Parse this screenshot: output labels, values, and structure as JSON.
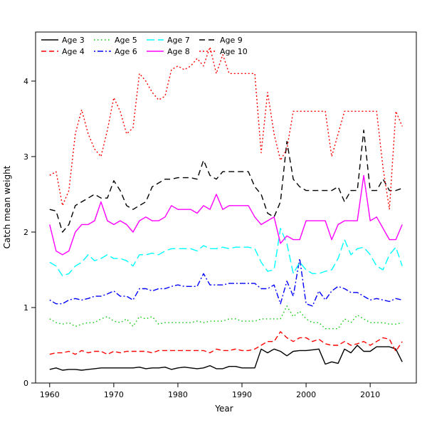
{
  "chart_data": {
    "type": "line",
    "title": "",
    "xlabel": "Year",
    "ylabel": "Catch mean weight",
    "xlim": [
      1957.8,
      2017.2
    ],
    "ylim": [
      0,
      4.65
    ],
    "xticks": [
      1960,
      1970,
      1980,
      1990,
      2000,
      2010
    ],
    "yticks": [
      0,
      1,
      2,
      3,
      4
    ],
    "grid": false,
    "legend_position": "top-left",
    "legend_ncol": 4,
    "x": [
      1960,
      1961,
      1962,
      1963,
      1964,
      1965,
      1966,
      1967,
      1968,
      1969,
      1970,
      1971,
      1972,
      1973,
      1974,
      1975,
      1976,
      1977,
      1978,
      1979,
      1980,
      1981,
      1982,
      1983,
      1984,
      1985,
      1986,
      1987,
      1988,
      1989,
      1990,
      1991,
      1992,
      1993,
      1994,
      1995,
      1996,
      1997,
      1998,
      1999,
      2000,
      2001,
      2002,
      2003,
      2004,
      2005,
      2006,
      2007,
      2008,
      2009,
      2010,
      2011,
      2012,
      2013,
      2014,
      2015
    ],
    "series": [
      {
        "name": "Age 3",
        "color": "#000000",
        "dash": "",
        "values": [
          0.18,
          0.2,
          0.17,
          0.18,
          0.18,
          0.17,
          0.18,
          0.19,
          0.2,
          0.2,
          0.2,
          0.2,
          0.2,
          0.2,
          0.21,
          0.19,
          0.2,
          0.2,
          0.21,
          0.18,
          0.2,
          0.21,
          0.2,
          0.19,
          0.2,
          0.23,
          0.19,
          0.19,
          0.22,
          0.22,
          0.2,
          0.2,
          0.2,
          0.45,
          0.4,
          0.45,
          0.42,
          0.36,
          0.42,
          0.43,
          0.43,
          0.44,
          0.45,
          0.25,
          0.28,
          0.26,
          0.45,
          0.4,
          0.5,
          0.42,
          0.42,
          0.48,
          0.48,
          0.48,
          0.45,
          0.28
        ]
      },
      {
        "name": "Age 4",
        "color": "#FF0000",
        "dash": "7,4",
        "values": [
          0.38,
          0.4,
          0.4,
          0.42,
          0.38,
          0.43,
          0.4,
          0.42,
          0.42,
          0.38,
          0.42,
          0.4,
          0.42,
          0.42,
          0.42,
          0.42,
          0.4,
          0.43,
          0.43,
          0.43,
          0.43,
          0.43,
          0.43,
          0.43,
          0.43,
          0.4,
          0.45,
          0.43,
          0.43,
          0.45,
          0.43,
          0.43,
          0.45,
          0.5,
          0.55,
          0.55,
          0.68,
          0.6,
          0.55,
          0.6,
          0.6,
          0.55,
          0.58,
          0.52,
          0.5,
          0.5,
          0.55,
          0.5,
          0.52,
          0.55,
          0.5,
          0.55,
          0.6,
          0.58,
          0.42,
          0.55
        ]
      },
      {
        "name": "Age 5",
        "color": "#00CC00",
        "dash": "1.5,3.5",
        "values": [
          0.85,
          0.8,
          0.78,
          0.8,
          0.75,
          0.78,
          0.8,
          0.8,
          0.85,
          0.88,
          0.82,
          0.8,
          0.85,
          0.75,
          0.88,
          0.85,
          0.88,
          0.78,
          0.8,
          0.8,
          0.8,
          0.8,
          0.8,
          0.82,
          0.8,
          0.82,
          0.82,
          0.82,
          0.85,
          0.85,
          0.82,
          0.82,
          0.82,
          0.85,
          0.85,
          0.85,
          0.85,
          1.02,
          0.88,
          0.95,
          0.85,
          0.8,
          0.8,
          0.72,
          0.72,
          0.72,
          0.85,
          0.8,
          0.9,
          0.85,
          0.8,
          0.8,
          0.8,
          0.78,
          0.78,
          0.8
        ]
      },
      {
        "name": "Age 6",
        "color": "#0000FF",
        "dash": "2,3,8,3",
        "values": [
          1.1,
          1.05,
          1.05,
          1.1,
          1.12,
          1.1,
          1.12,
          1.15,
          1.15,
          1.18,
          1.22,
          1.15,
          1.15,
          1.1,
          1.25,
          1.25,
          1.22,
          1.25,
          1.25,
          1.28,
          1.3,
          1.28,
          1.28,
          1.28,
          1.45,
          1.3,
          1.3,
          1.3,
          1.32,
          1.32,
          1.32,
          1.32,
          1.32,
          1.25,
          1.25,
          1.3,
          1.05,
          1.35,
          1.15,
          1.65,
          1.05,
          1.02,
          1.22,
          1.1,
          1.22,
          1.28,
          1.25,
          1.2,
          1.2,
          1.15,
          1.1,
          1.12,
          1.1,
          1.08,
          1.12,
          1.1
        ]
      },
      {
        "name": "Age 7",
        "color": "#00FFFF",
        "dash": "11,5",
        "values": [
          1.6,
          1.55,
          1.42,
          1.45,
          1.55,
          1.6,
          1.7,
          1.62,
          1.65,
          1.7,
          1.65,
          1.65,
          1.62,
          1.55,
          1.7,
          1.7,
          1.72,
          1.7,
          1.75,
          1.78,
          1.78,
          1.78,
          1.78,
          1.75,
          1.82,
          1.78,
          1.78,
          1.8,
          1.78,
          1.8,
          1.8,
          1.8,
          1.78,
          1.6,
          1.48,
          1.5,
          2.05,
          1.85,
          1.45,
          1.6,
          1.5,
          1.45,
          1.45,
          1.48,
          1.5,
          1.65,
          1.9,
          1.7,
          1.78,
          1.8,
          1.7,
          1.55,
          1.5,
          1.7,
          1.8,
          1.55
        ]
      },
      {
        "name": "Age 8",
        "color": "#FF00FF",
        "dash": "",
        "values": [
          2.1,
          1.75,
          1.7,
          1.75,
          2.0,
          2.1,
          2.1,
          2.15,
          2.4,
          2.15,
          2.1,
          2.15,
          2.1,
          2.0,
          2.15,
          2.2,
          2.15,
          2.15,
          2.2,
          2.35,
          2.3,
          2.3,
          2.3,
          2.25,
          2.35,
          2.3,
          2.5,
          2.3,
          2.35,
          2.35,
          2.35,
          2.35,
          2.2,
          2.1,
          2.15,
          2.2,
          1.85,
          1.95,
          1.9,
          1.9,
          2.15,
          2.15,
          2.15,
          2.15,
          1.9,
          2.1,
          2.15,
          2.15,
          2.15,
          2.75,
          2.15,
          2.2,
          2.05,
          1.9,
          1.9,
          2.1
        ]
      },
      {
        "name": "Age 9",
        "color": "#000000",
        "dash": "8,5",
        "values": [
          2.3,
          2.28,
          2.0,
          2.1,
          2.35,
          2.4,
          2.45,
          2.5,
          2.45,
          2.45,
          2.68,
          2.55,
          2.35,
          2.3,
          2.35,
          2.4,
          2.6,
          2.65,
          2.7,
          2.7,
          2.72,
          2.72,
          2.72,
          2.7,
          2.95,
          2.75,
          2.7,
          2.8,
          2.8,
          2.8,
          2.8,
          2.8,
          2.6,
          2.5,
          2.25,
          2.2,
          2.4,
          3.2,
          2.7,
          2.6,
          2.55,
          2.55,
          2.55,
          2.55,
          2.55,
          2.6,
          2.4,
          2.55,
          2.55,
          3.35,
          2.55,
          2.55,
          2.7,
          2.55,
          2.55,
          2.58
        ]
      },
      {
        "name": "Age 10",
        "color": "#FF0000",
        "dash": "2,3",
        "values": [
          2.75,
          2.8,
          2.35,
          2.55,
          3.3,
          3.62,
          3.3,
          3.1,
          3.0,
          3.35,
          3.78,
          3.6,
          3.3,
          3.38,
          4.1,
          4.0,
          3.85,
          3.75,
          3.8,
          4.15,
          4.2,
          4.15,
          4.2,
          4.3,
          4.2,
          4.45,
          4.1,
          4.35,
          4.1,
          4.1,
          4.1,
          4.1,
          4.1,
          3.05,
          3.85,
          3.3,
          2.95,
          3.1,
          3.6,
          3.6,
          3.6,
          3.6,
          3.6,
          3.6,
          3.0,
          3.3,
          3.6,
          3.6,
          3.6,
          3.6,
          3.6,
          3.6,
          2.85,
          2.3,
          3.6,
          3.4
        ]
      }
    ]
  }
}
